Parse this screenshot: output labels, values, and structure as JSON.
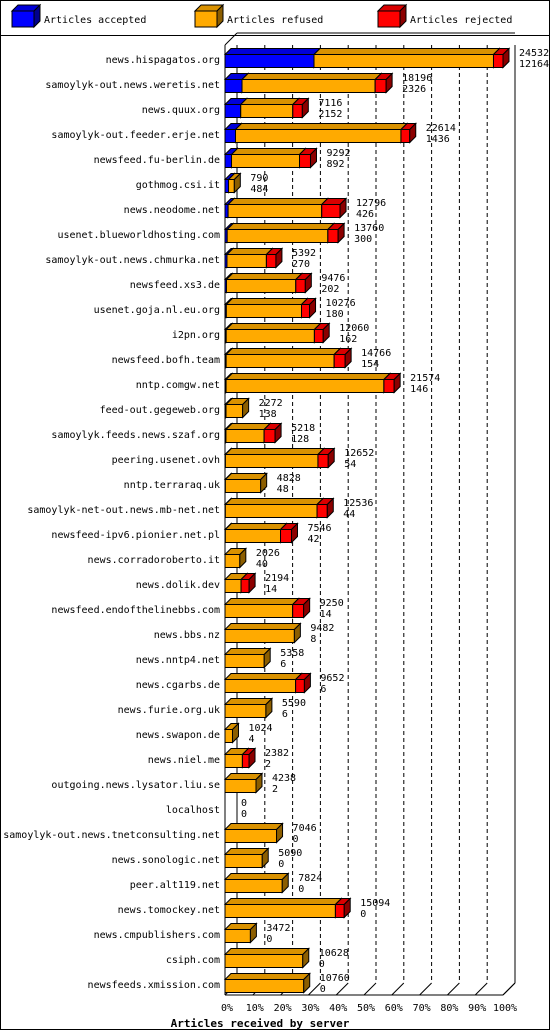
{
  "chart_data": {
    "type": "bar",
    "stacked": true,
    "orientation": "horizontal",
    "xlabel": "Articles received by server",
    "xlim": [
      0,
      100
    ],
    "x_ticks": [
      "0%",
      "10%",
      "20%",
      "30%",
      "40%",
      "50%",
      "60%",
      "70%",
      "80%",
      "90%",
      "100%"
    ],
    "grid": true,
    "legend_position": "top",
    "series": [
      {
        "name": "Articles accepted",
        "color": "#0000ff"
      },
      {
        "name": "Articles refused",
        "color": "#ffaa00"
      },
      {
        "name": "Articles rejected",
        "color": "#ff0000"
      }
    ],
    "rows": [
      {
        "host": "news.hispagatos.org",
        "accepted": 12164,
        "refused": 24532,
        "rejected": 1300,
        "count1": "24532",
        "count2": "12164"
      },
      {
        "host": "samoylyk-out.news.weretis.net",
        "accepted": 2326,
        "refused": 18196,
        "rejected": 1500,
        "count1": "18196",
        "count2": "2326"
      },
      {
        "host": "news.quux.org",
        "accepted": 2152,
        "refused": 7116,
        "rejected": 1300,
        "count1": "7116",
        "count2": "2152"
      },
      {
        "host": "samoylyk-out.feeder.erje.net",
        "accepted": 1436,
        "refused": 22614,
        "rejected": 1200,
        "count1": "22614",
        "count2": "1436"
      },
      {
        "host": "newsfeed.fu-berlin.de",
        "accepted": 892,
        "refused": 9292,
        "rejected": 1500,
        "count1": "9292",
        "count2": "892"
      },
      {
        "host": "gothmog.csi.it",
        "accepted": 484,
        "refused": 790,
        "rejected": 0,
        "count1": "790",
        "count2": "484"
      },
      {
        "host": "news.neodome.net",
        "accepted": 426,
        "refused": 12796,
        "rejected": 2500,
        "count1": "12796",
        "count2": "426"
      },
      {
        "host": "usenet.blueworldhosting.com",
        "accepted": 300,
        "refused": 13760,
        "rejected": 1400,
        "count1": "13760",
        "count2": "300"
      },
      {
        "host": "samoylyk-out.news.chmurka.net",
        "accepted": 270,
        "refused": 5392,
        "rejected": 1300,
        "count1": "5392",
        "count2": "270"
      },
      {
        "host": "newsfeed.xs3.de",
        "accepted": 202,
        "refused": 9476,
        "rejected": 1300,
        "count1": "9476",
        "count2": "202"
      },
      {
        "host": "usenet.goja.nl.eu.org",
        "accepted": 180,
        "refused": 10276,
        "rejected": 1100,
        "count1": "10276",
        "count2": "180"
      },
      {
        "host": "i2pn.org",
        "accepted": 162,
        "refused": 12060,
        "rejected": 1200,
        "count1": "12060",
        "count2": "162"
      },
      {
        "host": "newsfeed.bofh.team",
        "accepted": 154,
        "refused": 14766,
        "rejected": 1500,
        "count1": "14766",
        "count2": "154"
      },
      {
        "host": "nntp.comgw.net",
        "accepted": 146,
        "refused": 21574,
        "rejected": 1400,
        "count1": "21574",
        "count2": "146"
      },
      {
        "host": "feed-out.gegeweb.org",
        "accepted": 138,
        "refused": 2272,
        "rejected": 0,
        "count1": "2272",
        "count2": "138"
      },
      {
        "host": "samoylyk.feeds.news.szaf.org",
        "accepted": 128,
        "refused": 5218,
        "rejected": 1500,
        "count1": "5218",
        "count2": "128"
      },
      {
        "host": "peering.usenet.ovh",
        "accepted": 54,
        "refused": 12652,
        "rejected": 1400,
        "count1": "12652",
        "count2": "54"
      },
      {
        "host": "nntp.terraraq.uk",
        "accepted": 48,
        "refused": 4828,
        "rejected": 0,
        "count1": "4828",
        "count2": "48"
      },
      {
        "host": "samoylyk-net-out.news.mb-net.net",
        "accepted": 44,
        "refused": 12536,
        "rejected": 1400,
        "count1": "12536",
        "count2": "44"
      },
      {
        "host": "newsfeed-ipv6.pionier.net.pl",
        "accepted": 42,
        "refused": 7546,
        "rejected": 1500,
        "count1": "7546",
        "count2": "42"
      },
      {
        "host": "news.corradoroberto.it",
        "accepted": 40,
        "refused": 2026,
        "rejected": 0,
        "count1": "2026",
        "count2": "40"
      },
      {
        "host": "news.dolik.dev",
        "accepted": 14,
        "refused": 2194,
        "rejected": 1100,
        "count1": "2194",
        "count2": "14"
      },
      {
        "host": "newsfeed.endofthelinebbs.com",
        "accepted": 14,
        "refused": 9250,
        "rejected": 1500,
        "count1": "9250",
        "count2": "14"
      },
      {
        "host": "news.bbs.nz",
        "accepted": 8,
        "refused": 9482,
        "rejected": 0,
        "count1": "9482",
        "count2": "8"
      },
      {
        "host": "news.nntp4.net",
        "accepted": 6,
        "refused": 5358,
        "rejected": 0,
        "count1": "5358",
        "count2": "6"
      },
      {
        "host": "news.cgarbs.de",
        "accepted": 6,
        "refused": 9652,
        "rejected": 1200,
        "count1": "9652",
        "count2": "6"
      },
      {
        "host": "news.furie.org.uk",
        "accepted": 6,
        "refused": 5590,
        "rejected": 0,
        "count1": "5590",
        "count2": "6"
      },
      {
        "host": "news.swapon.de",
        "accepted": 4,
        "refused": 1024,
        "rejected": 0,
        "count1": "1024",
        "count2": "4"
      },
      {
        "host": "news.niel.me",
        "accepted": 2,
        "refused": 2382,
        "rejected": 900,
        "count1": "2382",
        "count2": "2"
      },
      {
        "host": "outgoing.news.lysator.liu.se",
        "accepted": 2,
        "refused": 4238,
        "rejected": 0,
        "count1": "4238",
        "count2": "2"
      },
      {
        "host": "localhost",
        "accepted": 0,
        "refused": 0,
        "rejected": 0,
        "count1": "0",
        "count2": "0"
      },
      {
        "host": "samoylyk-out.news.tnetconsulting.net",
        "accepted": 0,
        "refused": 7046,
        "rejected": 0,
        "count1": "7046",
        "count2": "0"
      },
      {
        "host": "news.sonologic.net",
        "accepted": 0,
        "refused": 5090,
        "rejected": 0,
        "count1": "5090",
        "count2": "0"
      },
      {
        "host": "peer.alt119.net",
        "accepted": 0,
        "refused": 7824,
        "rejected": 0,
        "count1": "7824",
        "count2": "0"
      },
      {
        "host": "news.tomockey.net",
        "accepted": 0,
        "refused": 15094,
        "rejected": 1200,
        "count1": "15094",
        "count2": "0"
      },
      {
        "host": "news.cmpublishers.com",
        "accepted": 0,
        "refused": 3472,
        "rejected": 0,
        "count1": "3472",
        "count2": "0"
      },
      {
        "host": "csiph.com",
        "accepted": 0,
        "refused": 10628,
        "rejected": 0,
        "count1": "10628",
        "count2": "0"
      },
      {
        "host": "newsfeeds.xmission.com",
        "accepted": 0,
        "refused": 10760,
        "rejected": 0,
        "count1": "10760",
        "count2": "0"
      }
    ]
  }
}
